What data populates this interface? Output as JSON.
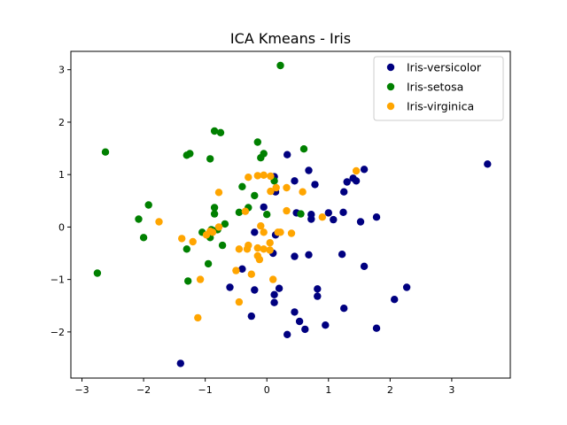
{
  "chart_data": {
    "type": "scatter",
    "title": "ICA Kmeans - Iris",
    "xlabel": "",
    "ylabel": "",
    "xlim": [
      -3.18,
      3.95
    ],
    "ylim": [
      -2.88,
      3.35
    ],
    "xticks": [
      -3,
      -2,
      -1,
      0,
      1,
      2,
      3
    ],
    "yticks": [
      -2,
      -1,
      0,
      1,
      2,
      3
    ],
    "grid": false,
    "legend_position": "top-right",
    "series": [
      {
        "name": "Iris-versicolor",
        "color": "#000080",
        "points": [
          [
            3.58,
            1.2
          ],
          [
            -1.4,
            -2.6
          ],
          [
            2.27,
            -1.15
          ],
          [
            2.07,
            -1.38
          ],
          [
            1.78,
            -1.93
          ],
          [
            1.78,
            0.19
          ],
          [
            1.58,
            1.1
          ],
          [
            1.58,
            -0.75
          ],
          [
            1.52,
            0.1
          ],
          [
            1.45,
            0.88
          ],
          [
            1.4,
            0.93
          ],
          [
            1.3,
            0.86
          ],
          [
            1.25,
            0.67
          ],
          [
            1.24,
            0.28
          ],
          [
            1.22,
            -0.52
          ],
          [
            1.25,
            -1.55
          ],
          [
            1.08,
            0.14
          ],
          [
            1.0,
            0.27
          ],
          [
            0.95,
            -1.87
          ],
          [
            0.82,
            -1.18
          ],
          [
            0.82,
            -1.32
          ],
          [
            0.78,
            0.81
          ],
          [
            0.72,
            0.15
          ],
          [
            0.72,
            0.24
          ],
          [
            0.68,
            1.08
          ],
          [
            0.68,
            -0.53
          ],
          [
            0.62,
            -1.95
          ],
          [
            0.53,
            -1.8
          ],
          [
            0.48,
            0.27
          ],
          [
            0.45,
            0.88
          ],
          [
            0.45,
            -0.56
          ],
          [
            0.45,
            -1.62
          ],
          [
            0.33,
            1.38
          ],
          [
            0.33,
            -2.05
          ],
          [
            0.2,
            -1.17
          ],
          [
            0.12,
            -1.29
          ],
          [
            0.12,
            -1.44
          ],
          [
            0.1,
            -0.5
          ],
          [
            0.12,
            0.96
          ],
          [
            0.14,
            0.67
          ],
          [
            0.14,
            -0.15
          ],
          [
            -0.05,
            0.38
          ],
          [
            -0.2,
            -0.1
          ],
          [
            -0.2,
            -1.2
          ],
          [
            -0.25,
            -1.7
          ],
          [
            -0.4,
            -0.8
          ],
          [
            -0.6,
            -1.15
          ]
        ]
      },
      {
        "name": "Iris-setosa",
        "color": "#008000",
        "points": [
          [
            0.22,
            3.08
          ],
          [
            -2.62,
            1.43
          ],
          [
            -2.75,
            -0.88
          ],
          [
            -2.08,
            0.15
          ],
          [
            -2.0,
            -0.2
          ],
          [
            -1.92,
            0.42
          ],
          [
            -1.3,
            1.37
          ],
          [
            -1.25,
            1.4
          ],
          [
            -1.3,
            -0.42
          ],
          [
            -1.28,
            -1.03
          ],
          [
            -1.05,
            -0.1
          ],
          [
            -0.95,
            -0.7
          ],
          [
            -0.92,
            1.3
          ],
          [
            -0.92,
            -0.2
          ],
          [
            -0.9,
            -0.05
          ],
          [
            -0.85,
            1.83
          ],
          [
            -0.75,
            1.8
          ],
          [
            -0.85,
            0.37
          ],
          [
            -0.85,
            0.25
          ],
          [
            -0.8,
            -0.05
          ],
          [
            -0.72,
            -0.35
          ],
          [
            -0.68,
            0.06
          ],
          [
            -0.45,
            0.28
          ],
          [
            -0.4,
            0.77
          ],
          [
            -0.3,
            0.37
          ],
          [
            -0.2,
            0.6
          ],
          [
            -0.15,
            1.62
          ],
          [
            -0.1,
            1.32
          ],
          [
            -0.05,
            1.4
          ],
          [
            0.0,
            0.24
          ],
          [
            0.12,
            0.88
          ],
          [
            0.6,
            1.49
          ],
          [
            0.55,
            0.25
          ]
        ]
      },
      {
        "name": "Iris-virginica",
        "color": "#FFA500",
        "points": [
          [
            1.45,
            1.07
          ],
          [
            0.9,
            0.19
          ],
          [
            0.58,
            0.67
          ],
          [
            0.32,
            0.75
          ],
          [
            0.32,
            0.31
          ],
          [
            0.15,
            0.75
          ],
          [
            0.06,
            0.97
          ],
          [
            0.06,
            0.68
          ],
          [
            -0.05,
            0.99
          ],
          [
            -0.15,
            0.98
          ],
          [
            -0.3,
            0.95
          ],
          [
            -0.35,
            0.3
          ],
          [
            -0.78,
            0.66
          ],
          [
            -1.75,
            0.1
          ],
          [
            -0.78,
            0.0
          ],
          [
            -0.88,
            -0.1
          ],
          [
            -0.92,
            -0.08
          ],
          [
            -0.98,
            -0.15
          ],
          [
            -1.2,
            -0.28
          ],
          [
            -1.38,
            -0.22
          ],
          [
            -0.05,
            -0.1
          ],
          [
            -0.15,
            -0.4
          ],
          [
            -0.3,
            -0.35
          ],
          [
            -0.32,
            -0.42
          ],
          [
            -0.45,
            -0.42
          ],
          [
            -0.5,
            -0.83
          ],
          [
            -0.45,
            -1.43
          ],
          [
            -0.25,
            -0.9
          ],
          [
            -0.15,
            -0.55
          ],
          [
            -0.12,
            -0.62
          ],
          [
            -0.05,
            -0.42
          ],
          [
            0.05,
            -0.44
          ],
          [
            0.1,
            -1.0
          ],
          [
            0.18,
            -0.1
          ],
          [
            0.22,
            -0.1
          ],
          [
            0.4,
            -0.12
          ],
          [
            -1.08,
            -1.0
          ],
          [
            -1.12,
            -1.73
          ],
          [
            -0.1,
            0.02
          ],
          [
            0.05,
            -0.3
          ]
        ]
      }
    ]
  }
}
